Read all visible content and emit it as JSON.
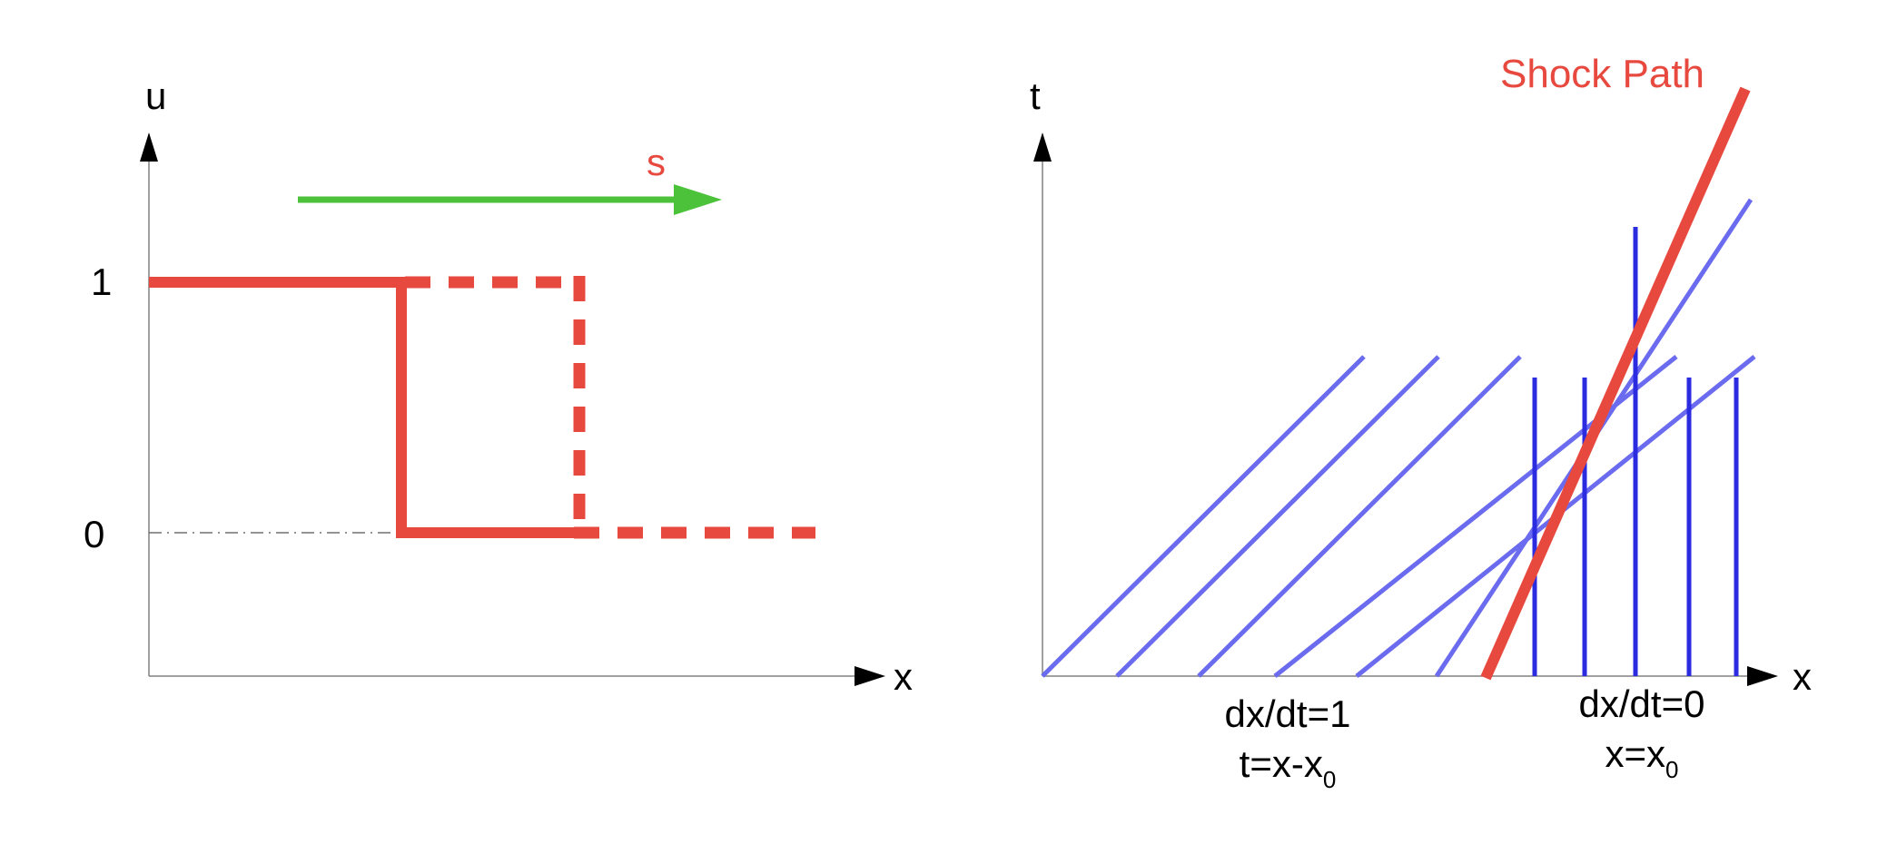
{
  "colors": {
    "shock": "#e8493f",
    "speed_arrow": "#4cc23a",
    "characteristic": "#6b6bef",
    "vertical_characteristic": "#2b2be0",
    "axis": "#808080",
    "text": "#000000"
  },
  "left_panel": {
    "y_axis_label": "u",
    "x_axis_label": "x",
    "tick_one": "1",
    "tick_zero": "0",
    "speed_label": "s"
  },
  "right_panel": {
    "y_axis_label": "t",
    "x_axis_label": "x",
    "shock_label": "Shock Path",
    "left_region": {
      "slope_text": "dx/dt=1",
      "eq_prefix": "t=x-x",
      "eq_subscript": "0"
    },
    "right_region": {
      "slope_text": "dx/dt=0",
      "eq_prefix": "x=x",
      "eq_subscript": "0"
    }
  }
}
